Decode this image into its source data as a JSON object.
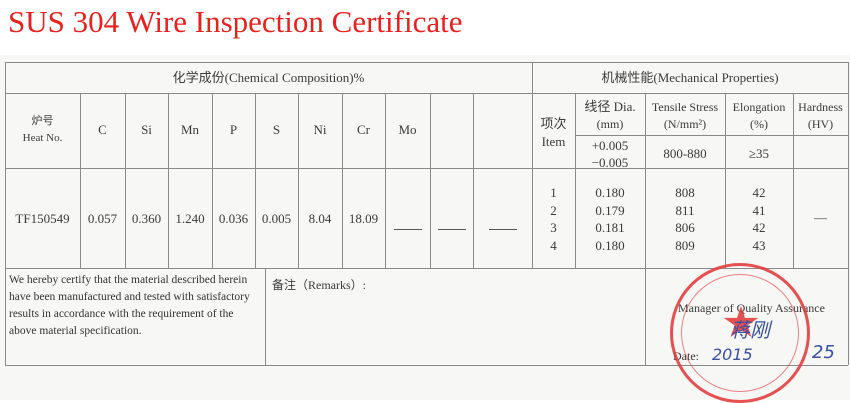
{
  "title": "SUS 304 Wire Inspection Certificate",
  "chemical": {
    "header": "化学成份(Chemical Composition)%",
    "heat_label_cn": "炉号",
    "heat_label_en": "Heat No.",
    "columns": [
      "C",
      "Si",
      "Mn",
      "P",
      "S",
      "Ni",
      "Cr",
      "Mo",
      "",
      ""
    ],
    "heat_no": "TF150549",
    "values": [
      "0.057",
      "0.360",
      "1.240",
      "0.036",
      "0.005",
      "8.04",
      "18.09",
      "—",
      "—",
      "—"
    ]
  },
  "mechanical": {
    "header": "机械性能(Mechanical Properties)",
    "item_label_cn": "项次",
    "item_label_en": "Item",
    "dia_label": "线径 Dia.",
    "dia_unit": "(mm)",
    "tensile_label": "Tensile Stress",
    "tensile_unit": "(N/mm²)",
    "elong_label": "Elongation",
    "elong_unit": "(%)",
    "hardness_label": "Hardness",
    "hardness_unit": "(HV)",
    "dia_tol_plus": "+0.005",
    "dia_tol_minus": "−0.005",
    "tensile_spec": "800-880",
    "elong_spec": "≥35",
    "rows": [
      {
        "item": "1",
        "dia": "0.180",
        "tensile": "808",
        "elong": "42"
      },
      {
        "item": "2",
        "dia": "0.179",
        "tensile": "811",
        "elong": "41"
      },
      {
        "item": "3",
        "dia": "0.181",
        "tensile": "806",
        "elong": "42"
      },
      {
        "item": "4",
        "dia": "0.180",
        "tensile": "809",
        "elong": "43"
      }
    ],
    "hardness_value": "—"
  },
  "footer": {
    "certify_lines": [
      "We hereby certify that the material described herein",
      "have been manufactured and tested with satisfactory",
      "results in accordance with the requirement of the",
      "above material specification."
    ],
    "remarks_label": "备注（Remarks）:",
    "manager_label": "Manager of Quality Assurance",
    "date_label": "Date:",
    "signature": "蒋刚",
    "date_year": "2015",
    "date_day": "25"
  },
  "stamp_color": "#e23434"
}
